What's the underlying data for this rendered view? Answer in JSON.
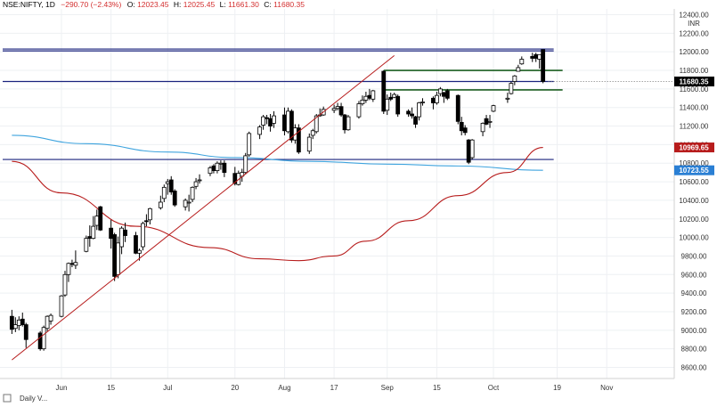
{
  "header": {
    "symbol": "NSE:NIFTY, 1D",
    "change": "−290.70 (−2.43%)",
    "open_label": "O:",
    "open_value": "12023.45",
    "high_label": "H:",
    "high_value": "12025.45",
    "low_label": "L:",
    "low_value": "11661.30",
    "close_label": "C:",
    "close_value": "11680.35",
    "last_value": "11680.35"
  },
  "axis": {
    "currency": "INR",
    "y_ticks": [
      "12400.00",
      "12200.00",
      "12000.00",
      "11800.00",
      "11600.00",
      "11400.00",
      "11200.00",
      "11000.00",
      "10800.00",
      "10600.00",
      "10400.00",
      "10200.00",
      "10000.00",
      "9800.00",
      "9600.00",
      "9400.00",
      "9200.00",
      "9000.00",
      "8800.00",
      "8600.00"
    ],
    "x_ticks": [
      "Jun",
      "15",
      "Jul",
      "20",
      "Aug",
      "17",
      "Sep",
      "15",
      "Oct",
      "19",
      "Nov"
    ]
  },
  "price_tags": {
    "last": "11680.35",
    "ma_slow": "10969.65",
    "ma_fast": "10723.55"
  },
  "footer": {
    "label": "Daily V..."
  },
  "colors": {
    "up_candle": "#ffffff",
    "down_candle": "#000000",
    "blue_line": "#3fa4de",
    "red_line": "#b71c1c",
    "horizontal_blue": "#1a237e",
    "horizontal_green": "#1b5e20",
    "last_tag": "#000000",
    "ma_slow_tag": "#b71c1c",
    "ma_fast_tag": "#2a7fd4"
  },
  "chart_data": {
    "type": "candlestick",
    "title": "NSE:NIFTY, 1D",
    "ylim": [
      8450,
      12450
    ],
    "y_scale": "linear",
    "grid": true,
    "x_axis_ticks": [
      {
        "label": "Jun",
        "date": "2020-06-01"
      },
      {
        "label": "15",
        "date": "2020-06-15"
      },
      {
        "label": "Jul",
        "date": "2020-07-01"
      },
      {
        "label": "20",
        "date": "2020-07-20"
      },
      {
        "label": "Aug",
        "date": "2020-08-03"
      },
      {
        "label": "17",
        "date": "2020-08-17"
      },
      {
        "label": "Sep",
        "date": "2020-09-01"
      },
      {
        "label": "15",
        "date": "2020-09-15"
      },
      {
        "label": "Oct",
        "date": "2020-10-01"
      },
      {
        "label": "19",
        "date": "2020-10-19"
      },
      {
        "label": "Nov",
        "date": "2020-11-02"
      }
    ],
    "candles": [
      {
        "date": "2020-05-18",
        "o": 9150,
        "h": 9220,
        "l": 8960,
        "c": 9010
      },
      {
        "date": "2020-05-19",
        "o": 9020,
        "h": 9140,
        "l": 8980,
        "c": 9060
      },
      {
        "date": "2020-05-20",
        "o": 9050,
        "h": 9150,
        "l": 9000,
        "c": 9110
      },
      {
        "date": "2020-05-21",
        "o": 9120,
        "h": 9190,
        "l": 9040,
        "c": 9060
      },
      {
        "date": "2020-05-22",
        "o": 9060,
        "h": 9080,
        "l": 8810,
        "c": 8900
      },
      {
        "date": "2020-05-26",
        "o": 8970,
        "h": 8990,
        "l": 8780,
        "c": 8800
      },
      {
        "date": "2020-05-27",
        "o": 8800,
        "h": 9050,
        "l": 8780,
        "c": 9030
      },
      {
        "date": "2020-05-28",
        "o": 9020,
        "h": 9160,
        "l": 8990,
        "c": 9150
      },
      {
        "date": "2020-05-29",
        "o": 9100,
        "h": 9180,
        "l": 9060,
        "c": 9160
      },
      {
        "date": "2020-06-01",
        "o": 9150,
        "h": 9380,
        "l": 9140,
        "c": 9370
      },
      {
        "date": "2020-06-02",
        "o": 9380,
        "h": 9640,
        "l": 9360,
        "c": 9600
      },
      {
        "date": "2020-06-03",
        "o": 9600,
        "h": 9730,
        "l": 9520,
        "c": 9720
      },
      {
        "date": "2020-06-04",
        "o": 9720,
        "h": 9760,
        "l": 9680,
        "c": 9710
      },
      {
        "date": "2020-06-05",
        "o": 9700,
        "h": 9860,
        "l": 9660,
        "c": 9730
      },
      {
        "date": "2020-06-08",
        "o": 9850,
        "h": 10020,
        "l": 9840,
        "c": 9990
      },
      {
        "date": "2020-06-09",
        "o": 10010,
        "h": 10130,
        "l": 9900,
        "c": 9990
      },
      {
        "date": "2020-06-10",
        "o": 9990,
        "h": 10230,
        "l": 9980,
        "c": 10120
      },
      {
        "date": "2020-06-11",
        "o": 10130,
        "h": 10300,
        "l": 10080,
        "c": 10230
      },
      {
        "date": "2020-06-12",
        "o": 10330,
        "h": 10340,
        "l": 10070,
        "c": 10080
      },
      {
        "date": "2020-06-15",
        "o": 10100,
        "h": 10190,
        "l": 9880,
        "c": 9990
      },
      {
        "date": "2020-06-16",
        "o": 10030,
        "h": 10050,
        "l": 9530,
        "c": 9580
      },
      {
        "date": "2020-06-17",
        "o": 9600,
        "h": 10010,
        "l": 9560,
        "c": 9940
      },
      {
        "date": "2020-06-18",
        "o": 9900,
        "h": 10120,
        "l": 9820,
        "c": 10100
      },
      {
        "date": "2020-06-19",
        "o": 10080,
        "h": 10160,
        "l": 9950,
        "c": 10020
      },
      {
        "date": "2020-06-22",
        "o": 10020,
        "h": 10060,
        "l": 9820,
        "c": 9830
      },
      {
        "date": "2020-06-23",
        "o": 9830,
        "h": 9880,
        "l": 9750,
        "c": 9860
      },
      {
        "date": "2020-06-24",
        "o": 9900,
        "h": 10170,
        "l": 9860,
        "c": 10150
      },
      {
        "date": "2020-06-25",
        "o": 10180,
        "h": 10250,
        "l": 10120,
        "c": 10170
      },
      {
        "date": "2020-06-26",
        "o": 10190,
        "h": 10320,
        "l": 10140,
        "c": 10310
      },
      {
        "date": "2020-06-29",
        "o": 10320,
        "h": 10450,
        "l": 10300,
        "c": 10380
      },
      {
        "date": "2020-06-30",
        "o": 10420,
        "h": 10570,
        "l": 10380,
        "c": 10540
      },
      {
        "date": "2020-07-01",
        "o": 10580,
        "h": 10630,
        "l": 10460,
        "c": 10600
      },
      {
        "date": "2020-07-02",
        "o": 10620,
        "h": 10660,
        "l": 10460,
        "c": 10490
      },
      {
        "date": "2020-07-03",
        "o": 10500,
        "h": 10520,
        "l": 10330,
        "c": 10350
      },
      {
        "date": "2020-07-06",
        "o": 10330,
        "h": 10420,
        "l": 10290,
        "c": 10400
      },
      {
        "date": "2020-07-07",
        "o": 10380,
        "h": 10460,
        "l": 10280,
        "c": 10380
      },
      {
        "date": "2020-07-08",
        "o": 10410,
        "h": 10550,
        "l": 10380,
        "c": 10540
      },
      {
        "date": "2020-07-09",
        "o": 10550,
        "h": 10640,
        "l": 10520,
        "c": 10600
      },
      {
        "date": "2020-07-10",
        "o": 10620,
        "h": 10680,
        "l": 10580,
        "c": 10620
      },
      {
        "date": "2020-07-13",
        "o": 10690,
        "h": 10770,
        "l": 10660,
        "c": 10750
      },
      {
        "date": "2020-07-14",
        "o": 10770,
        "h": 10790,
        "l": 10690,
        "c": 10720
      },
      {
        "date": "2020-07-15",
        "o": 10720,
        "h": 10820,
        "l": 10690,
        "c": 10800
      },
      {
        "date": "2020-07-16",
        "o": 10790,
        "h": 10830,
        "l": 10730,
        "c": 10800
      },
      {
        "date": "2020-07-17",
        "o": 10800,
        "h": 10830,
        "l": 10650,
        "c": 10700
      },
      {
        "date": "2020-07-20",
        "o": 10690,
        "h": 10760,
        "l": 10560,
        "c": 10580
      },
      {
        "date": "2020-07-21",
        "o": 10570,
        "h": 10720,
        "l": 10560,
        "c": 10690
      },
      {
        "date": "2020-07-22",
        "o": 10660,
        "h": 10740,
        "l": 10600,
        "c": 10700
      },
      {
        "date": "2020-07-23",
        "o": 10700,
        "h": 10910,
        "l": 10680,
        "c": 10880
      },
      {
        "date": "2020-07-24",
        "o": 10890,
        "h": 11140,
        "l": 10870,
        "c": 11120
      },
      {
        "date": "2020-07-27",
        "o": 11110,
        "h": 11210,
        "l": 11060,
        "c": 11190
      },
      {
        "date": "2020-07-28",
        "o": 11210,
        "h": 11320,
        "l": 11160,
        "c": 11300
      },
      {
        "date": "2020-07-29",
        "o": 11290,
        "h": 11320,
        "l": 11220,
        "c": 11280
      },
      {
        "date": "2020-07-30",
        "o": 11280,
        "h": 11330,
        "l": 11140,
        "c": 11200
      },
      {
        "date": "2020-07-31",
        "o": 11230,
        "h": 11360,
        "l": 11180,
        "c": 11310
      },
      {
        "date": "2020-08-03",
        "o": 11320,
        "h": 11400,
        "l": 11100,
        "c": 11150
      },
      {
        "date": "2020-08-04",
        "o": 11140,
        "h": 11400,
        "l": 11120,
        "c": 11360
      },
      {
        "date": "2020-08-05",
        "o": 11360,
        "h": 11380,
        "l": 11020,
        "c": 11050
      },
      {
        "date": "2020-08-06",
        "o": 11050,
        "h": 11220,
        "l": 11010,
        "c": 11180
      },
      {
        "date": "2020-08-07",
        "o": 11180,
        "h": 11220,
        "l": 10900,
        "c": 10920
      },
      {
        "date": "2020-08-10",
        "o": 10930,
        "h": 11120,
        "l": 10900,
        "c": 11080
      },
      {
        "date": "2020-08-11",
        "o": 11100,
        "h": 11170,
        "l": 11060,
        "c": 11150
      },
      {
        "date": "2020-08-12",
        "o": 11140,
        "h": 11330,
        "l": 11120,
        "c": 11310
      },
      {
        "date": "2020-08-13",
        "o": 11320,
        "h": 11390,
        "l": 11300,
        "c": 11320
      },
      {
        "date": "2020-08-14",
        "o": 11320,
        "h": 11410,
        "l": 11310,
        "c": 11380
      },
      {
        "date": "2020-08-17",
        "o": 11370,
        "h": 11430,
        "l": 11340,
        "c": 11390
      },
      {
        "date": "2020-08-18",
        "o": 11390,
        "h": 11450,
        "l": 11370,
        "c": 11410
      },
      {
        "date": "2020-08-19",
        "o": 11410,
        "h": 11450,
        "l": 11300,
        "c": 11320
      },
      {
        "date": "2020-08-20",
        "o": 11320,
        "h": 11330,
        "l": 11120,
        "c": 11160
      },
      {
        "date": "2020-08-21",
        "o": 11160,
        "h": 11320,
        "l": 11150,
        "c": 11300
      },
      {
        "date": "2020-08-24",
        "o": 11300,
        "h": 11470,
        "l": 11280,
        "c": 11440
      },
      {
        "date": "2020-08-25",
        "o": 11440,
        "h": 11530,
        "l": 11420,
        "c": 11480
      },
      {
        "date": "2020-08-26",
        "o": 11480,
        "h": 11570,
        "l": 11450,
        "c": 11520
      },
      {
        "date": "2020-08-27",
        "o": 11530,
        "h": 11600,
        "l": 11480,
        "c": 11500
      },
      {
        "date": "2020-08-28",
        "o": 11490,
        "h": 11590,
        "l": 11460,
        "c": 11580
      },
      {
        "date": "2020-08-31",
        "o": 11790,
        "h": 11800,
        "l": 11330,
        "c": 11360
      },
      {
        "date": "2020-09-01",
        "o": 11370,
        "h": 11540,
        "l": 11320,
        "c": 11490
      },
      {
        "date": "2020-09-02",
        "o": 11510,
        "h": 11560,
        "l": 11470,
        "c": 11490
      },
      {
        "date": "2020-09-03",
        "o": 11510,
        "h": 11560,
        "l": 11500,
        "c": 11540
      },
      {
        "date": "2020-09-04",
        "o": 11520,
        "h": 11540,
        "l": 11300,
        "c": 11330
      },
      {
        "date": "2020-09-07",
        "o": 11360,
        "h": 11380,
        "l": 11300,
        "c": 11330
      },
      {
        "date": "2020-09-08",
        "o": 11330,
        "h": 11400,
        "l": 11280,
        "c": 11310
      },
      {
        "date": "2020-09-09",
        "o": 11300,
        "h": 11310,
        "l": 11180,
        "c": 11220
      },
      {
        "date": "2020-09-10",
        "o": 11300,
        "h": 11460,
        "l": 11260,
        "c": 11450
      },
      {
        "date": "2020-09-11",
        "o": 11460,
        "h": 11500,
        "l": 11420,
        "c": 11460
      },
      {
        "date": "2020-09-14",
        "o": 11500,
        "h": 11520,
        "l": 11380,
        "c": 11450
      },
      {
        "date": "2020-09-15",
        "o": 11450,
        "h": 11570,
        "l": 11430,
        "c": 11530
      },
      {
        "date": "2020-09-16",
        "o": 11550,
        "h": 11620,
        "l": 11520,
        "c": 11600
      },
      {
        "date": "2020-09-17",
        "o": 11560,
        "h": 11570,
        "l": 11450,
        "c": 11520
      },
      {
        "date": "2020-09-18",
        "o": 11580,
        "h": 11600,
        "l": 11480,
        "c": 11500
      },
      {
        "date": "2020-09-21",
        "o": 11530,
        "h": 11540,
        "l": 11220,
        "c": 11250
      },
      {
        "date": "2020-09-22",
        "o": 11240,
        "h": 11300,
        "l": 11100,
        "c": 11150
      },
      {
        "date": "2020-09-23",
        "o": 11180,
        "h": 11210,
        "l": 11100,
        "c": 11130
      },
      {
        "date": "2020-09-24",
        "o": 11050,
        "h": 11060,
        "l": 10790,
        "c": 10810
      },
      {
        "date": "2020-09-25",
        "o": 10860,
        "h": 11060,
        "l": 10840,
        "c": 11050
      },
      {
        "date": "2020-09-28",
        "o": 11140,
        "h": 11240,
        "l": 11090,
        "c": 11230
      },
      {
        "date": "2020-09-29",
        "o": 11280,
        "h": 11320,
        "l": 11210,
        "c": 11220
      },
      {
        "date": "2020-09-30",
        "o": 11250,
        "h": 11320,
        "l": 11180,
        "c": 11250
      },
      {
        "date": "2020-10-01",
        "o": 11360,
        "h": 11430,
        "l": 11350,
        "c": 11420
      },
      {
        "date": "2020-10-05",
        "o": 11490,
        "h": 11560,
        "l": 11450,
        "c": 11500
      },
      {
        "date": "2020-10-06",
        "o": 11550,
        "h": 11680,
        "l": 11540,
        "c": 11660
      },
      {
        "date": "2020-10-07",
        "o": 11680,
        "h": 11750,
        "l": 11640,
        "c": 11740
      },
      {
        "date": "2020-10-08",
        "o": 11790,
        "h": 11860,
        "l": 11790,
        "c": 11830
      },
      {
        "date": "2020-10-09",
        "o": 11870,
        "h": 11950,
        "l": 11860,
        "c": 11920
      },
      {
        "date": "2020-10-12",
        "o": 11950,
        "h": 11990,
        "l": 11890,
        "c": 11930
      },
      {
        "date": "2020-10-13",
        "o": 11970,
        "h": 11990,
        "l": 11890,
        "c": 11930
      },
      {
        "date": "2020-10-14",
        "o": 11920,
        "h": 11960,
        "l": 11820,
        "c": 11970
      },
      {
        "date": "2020-10-15",
        "o": 12023.45,
        "h": 12025.45,
        "l": 11661.3,
        "c": 11680.35
      }
    ],
    "lines": [
      {
        "kind": "trendline",
        "color": "red",
        "points": [
          {
            "date": "2020-05-18",
            "y": 8680
          },
          {
            "date": "2020-09-03",
            "y": 11960
          }
        ]
      },
      {
        "kind": "moving_average_fast",
        "color": "blue",
        "points": [
          {
            "date": "2020-05-18",
            "y": 11100
          },
          {
            "date": "2020-06-08",
            "y": 11010
          },
          {
            "date": "2020-07-01",
            "y": 10920
          },
          {
            "date": "2020-07-20",
            "y": 10860
          },
          {
            "date": "2020-08-10",
            "y": 10820
          },
          {
            "date": "2020-09-01",
            "y": 10790
          },
          {
            "date": "2020-09-21",
            "y": 10770
          },
          {
            "date": "2020-10-15",
            "y": 10723.55
          }
        ]
      },
      {
        "kind": "moving_average_slow",
        "color": "red",
        "points": [
          {
            "date": "2020-05-18",
            "y": 10820
          },
          {
            "date": "2020-06-01",
            "y": 10480
          },
          {
            "date": "2020-06-22",
            "y": 10120
          },
          {
            "date": "2020-07-13",
            "y": 9890
          },
          {
            "date": "2020-07-27",
            "y": 9770
          },
          {
            "date": "2020-08-07",
            "y": 9750
          },
          {
            "date": "2020-08-17",
            "y": 9800
          },
          {
            "date": "2020-08-26",
            "y": 9960
          },
          {
            "date": "2020-09-07",
            "y": 10180
          },
          {
            "date": "2020-09-21",
            "y": 10450
          },
          {
            "date": "2020-10-05",
            "y": 10700
          },
          {
            "date": "2020-10-15",
            "y": 10969.65
          }
        ]
      },
      {
        "kind": "horizontal",
        "color": "blue",
        "y": 12030
      },
      {
        "kind": "horizontal",
        "color": "blue",
        "y": 12010
      },
      {
        "kind": "horizontal",
        "color": "blue",
        "y": 11680
      },
      {
        "kind": "horizontal",
        "color": "blue",
        "y": 10840
      },
      {
        "kind": "horizontal_segment",
        "color": "green",
        "y": 11800,
        "from": "2020-08-31",
        "to": "2020-10-15"
      },
      {
        "kind": "horizontal_segment",
        "color": "green",
        "y": 11590,
        "from": "2020-08-31",
        "to": "2020-10-15"
      }
    ]
  }
}
